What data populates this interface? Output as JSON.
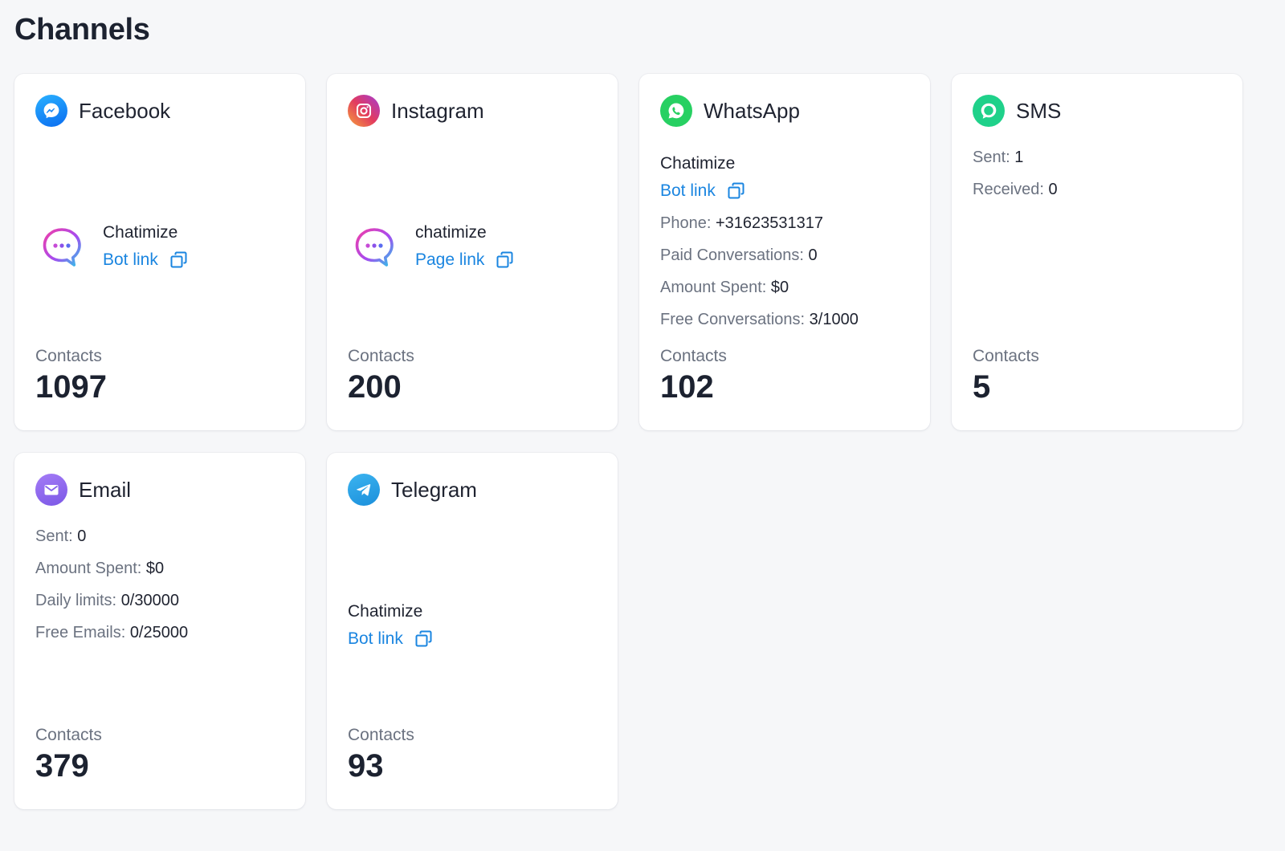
{
  "page": {
    "title": "Channels"
  },
  "colors": {
    "background": "#f6f7f9",
    "card": "#ffffff",
    "link": "#1a85e0",
    "muted": "#6b7280",
    "text": "#1f2330"
  },
  "cards": {
    "facebook": {
      "name": "Facebook",
      "icon": "messenger-icon",
      "account_name": "Chatimize",
      "link_label": "Bot link",
      "contacts_label": "Contacts",
      "contacts": "1097"
    },
    "instagram": {
      "name": "Instagram",
      "icon": "instagram-icon",
      "account_name": "chatimize",
      "link_label": "Page link",
      "contacts_label": "Contacts",
      "contacts": "200"
    },
    "whatsapp": {
      "name": "WhatsApp",
      "icon": "whatsapp-icon",
      "account_name": "Chatimize",
      "link_label": "Bot link",
      "stats": {
        "phone_label": "Phone:",
        "phone": "+31623531317",
        "paid_label": "Paid Conversations:",
        "paid": "0",
        "spent_label": "Amount Spent:",
        "spent": "$0",
        "free_label": "Free Conversations:",
        "free": "3/1000"
      },
      "contacts_label": "Contacts",
      "contacts": "102"
    },
    "sms": {
      "name": "SMS",
      "icon": "sms-bubble-icon",
      "stats": {
        "sent_label": "Sent:",
        "sent": "1",
        "received_label": "Received:",
        "received": "0"
      },
      "contacts_label": "Contacts",
      "contacts": "5"
    },
    "email": {
      "name": "Email",
      "icon": "envelope-icon",
      "stats": {
        "sent_label": "Sent:",
        "sent": "0",
        "spent_label": "Amount Spent:",
        "spent": "$0",
        "daily_label": "Daily limits:",
        "daily": "0/30000",
        "free_label": "Free Emails:",
        "free": "0/25000"
      },
      "contacts_label": "Contacts",
      "contacts": "379"
    },
    "telegram": {
      "name": "Telegram",
      "icon": "telegram-plane-icon",
      "account_name": "Chatimize",
      "link_label": "Bot link",
      "contacts_label": "Contacts",
      "contacts": "93"
    }
  }
}
